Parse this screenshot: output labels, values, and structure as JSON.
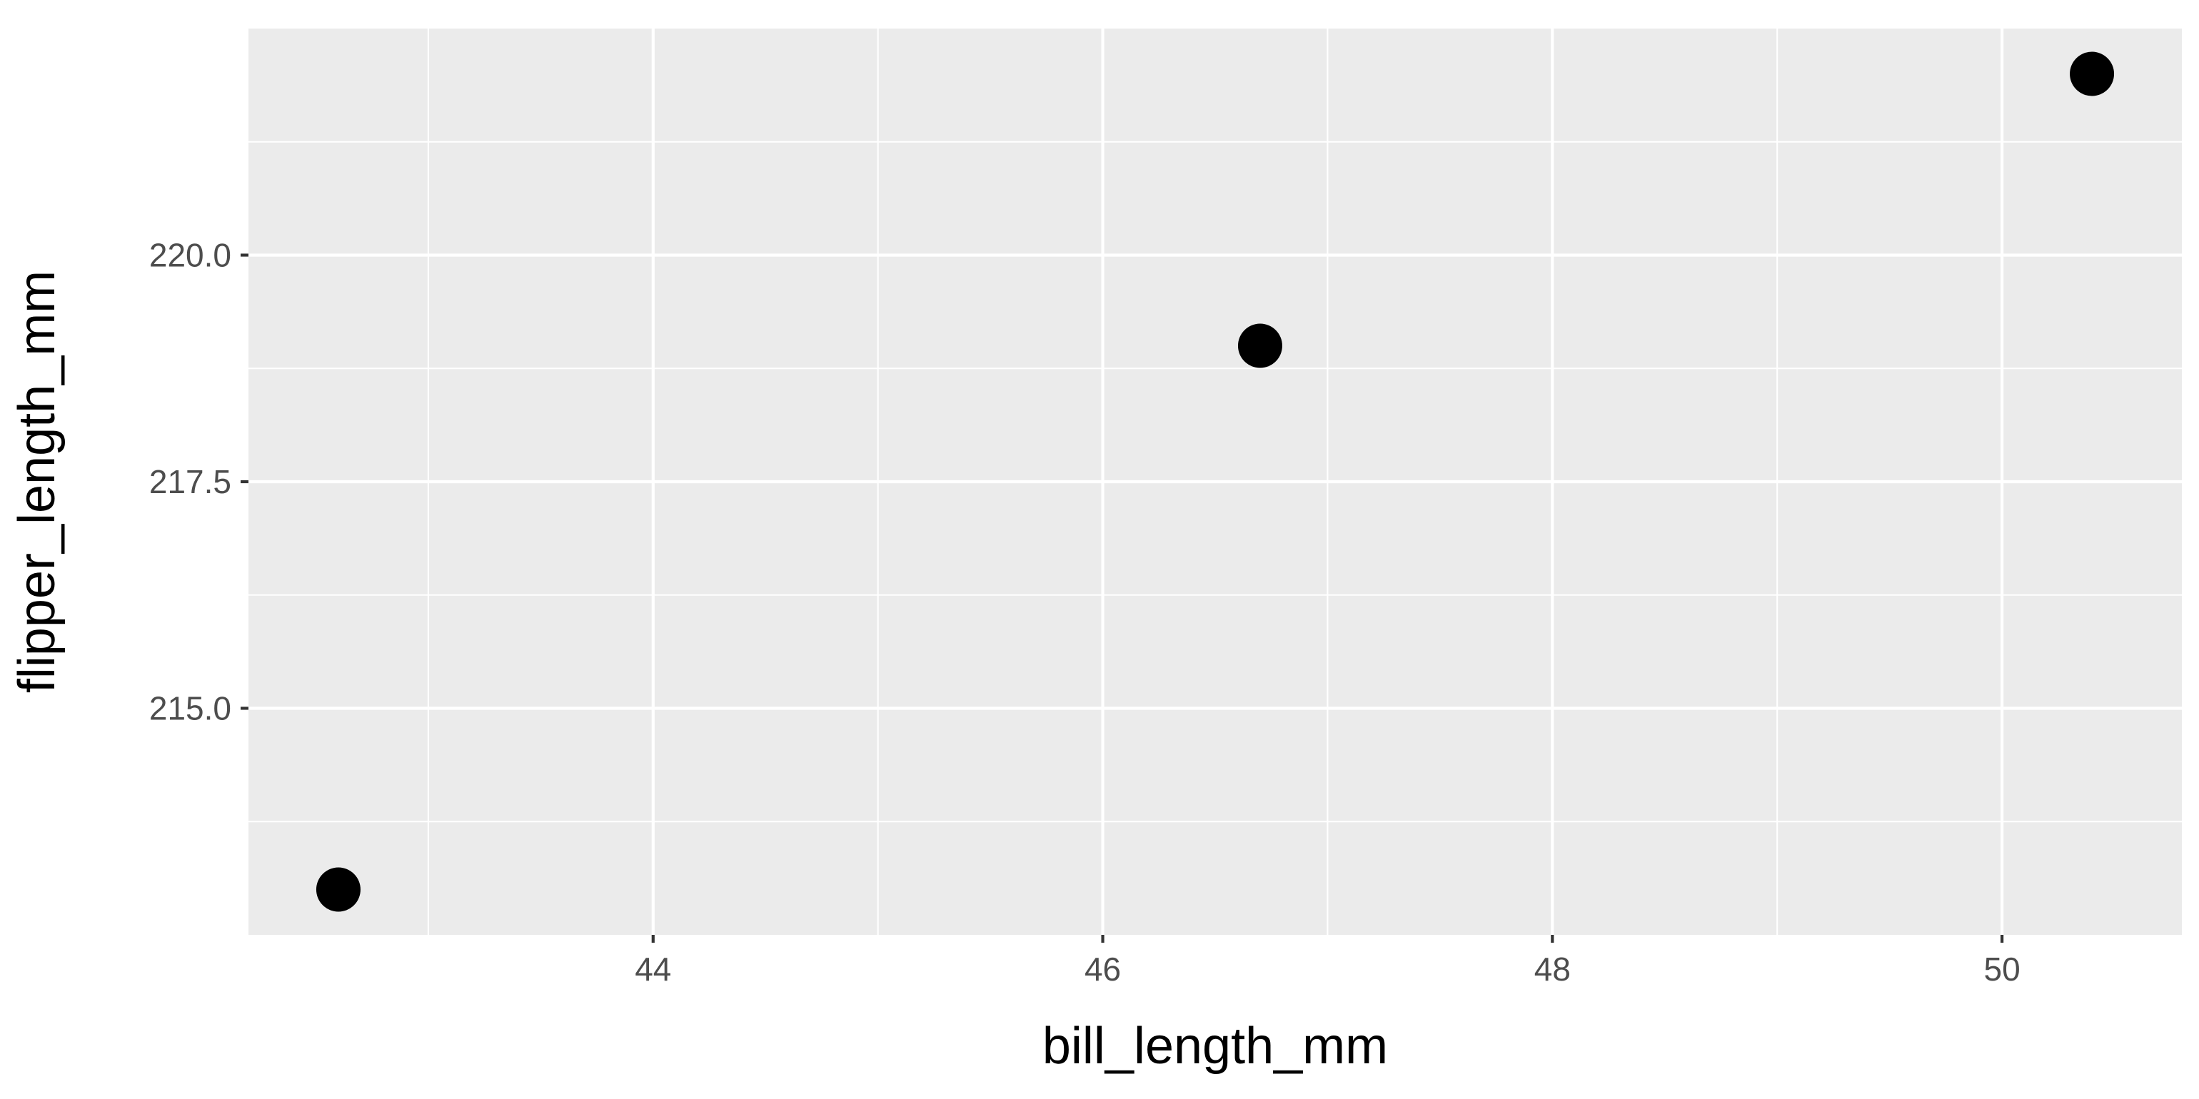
{
  "chart_data": {
    "type": "scatter",
    "title": "",
    "xlabel": "bill_length_mm",
    "ylabel": "flipper_length_mm",
    "x": [
      42.6,
      46.7,
      50.4
    ],
    "y": [
      213.0,
      219.0,
      222.0
    ],
    "xlim": [
      42.2,
      50.8
    ],
    "ylim": [
      212.5,
      222.5
    ],
    "x_major_ticks": [
      44,
      46,
      48,
      50
    ],
    "x_minor_ticks": [
      43,
      45,
      47,
      49
    ],
    "x_tick_labels": [
      "44",
      "46",
      "48",
      "50"
    ],
    "y_major_ticks": [
      215.0,
      217.5,
      220.0
    ],
    "y_minor_ticks": [
      213.75,
      216.25,
      218.75,
      221.25
    ],
    "y_tick_labels": [
      "215.0",
      "217.5",
      "220.0"
    ],
    "grid": true,
    "panel_color": "#ebebeb",
    "point_color": "#000000"
  }
}
